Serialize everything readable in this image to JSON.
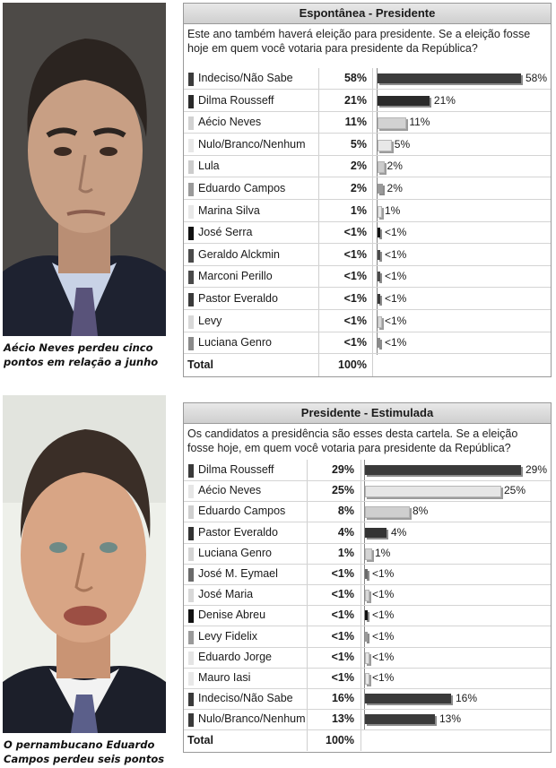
{
  "captions": {
    "top": "Aécio Neves perdeu cinco pontos em relação a junho",
    "bottom": "O pernambucano Eduardo Campos perdeu seis pontos"
  },
  "chart_data": [
    {
      "type": "bar",
      "title": "Espontânea - Presidente",
      "subtitle": "Este ano também haverá eleição para presidente. Se a eleição fosse hoje em quem você votaria para presidente da República?",
      "categories": [
        "Indeciso/Não Sabe",
        "Dilma Rousseff",
        "Aécio Neves",
        "Nulo/Branco/Nenhum",
        "Lula",
        "Eduardo Campos",
        "Marina Silva",
        "José Serra",
        "Geraldo Alckmin",
        "Marconi Perillo",
        "Pastor Everaldo",
        "Levy",
        "Luciana Genro"
      ],
      "values": [
        58,
        21,
        11,
        5,
        2,
        2,
        1,
        0.5,
        0.5,
        0.5,
        0.5,
        0.5,
        0.5
      ],
      "labels": [
        "58%",
        "21%",
        "11%",
        "5%",
        "2%",
        "2%",
        "1%",
        "<1%",
        "<1%",
        "<1%",
        "<1%",
        "<1%",
        "<1%"
      ],
      "colors": [
        "#3c3c3c",
        "#2a2a2a",
        "#d2d2d2",
        "#e8e8e8",
        "#cccccc",
        "#9a9a9a",
        "#e8e8e8",
        "#111111",
        "#4a4a4a",
        "#4a4a4a",
        "#3a3a3a",
        "#d8d8d8",
        "#8a8a8a"
      ],
      "total_label": "Total",
      "total_value": "100%",
      "xlim": [
        0,
        58
      ]
    },
    {
      "type": "bar",
      "title": "Presidente - Estimulada",
      "subtitle": "Os candidatos a presidência são esses desta cartela. Se a eleição fosse hoje, em quem você votaria para presidente da República?",
      "categories": [
        "Dilma Rousseff",
        "Aécio Neves",
        "Eduardo Campos",
        "Pastor Everaldo",
        "Luciana Genro",
        "José M. Eymael",
        "José Maria",
        "Denise Abreu",
        "Levy Fidelix",
        "Eduardo Jorge",
        "Mauro Iasi",
        "Indeciso/Não Sabe",
        "Nulo/Branco/Nenhum"
      ],
      "values": [
        29,
        25,
        8,
        4,
        1,
        0.5,
        0.5,
        0.5,
        0.5,
        0.5,
        0.5,
        16,
        13
      ],
      "labels": [
        "29%",
        "25%",
        "8%",
        "4%",
        "1%",
        "<1%",
        "<1%",
        "<1%",
        "<1%",
        "<1%",
        "<1%",
        "16%",
        "13%"
      ],
      "colors": [
        "#3a3a3a",
        "#e6e6e6",
        "#cfcfcf",
        "#333333",
        "#d4d4d4",
        "#6a6a6a",
        "#d8d8d8",
        "#111111",
        "#9a9a9a",
        "#e4e4e4",
        "#e8e8e8",
        "#3a3a3a",
        "#3a3a3a"
      ],
      "total_label": "Total",
      "total_value": "100%",
      "xlim": [
        0,
        29
      ]
    }
  ],
  "photos": {
    "top": {
      "skin": "#c89f84",
      "hair": "#2b2420",
      "suit": "#1e2230",
      "bg": "#4d4a47",
      "shirt": "#c8d2e6",
      "tie": "#59537a"
    },
    "bottom": {
      "skin": "#d8a585",
      "hair": "#3a2e27",
      "suit": "#1c1f2a",
      "bg": "#eef0ea",
      "shirt": "#f2f2f2",
      "tie": "#5b5f8a"
    }
  }
}
